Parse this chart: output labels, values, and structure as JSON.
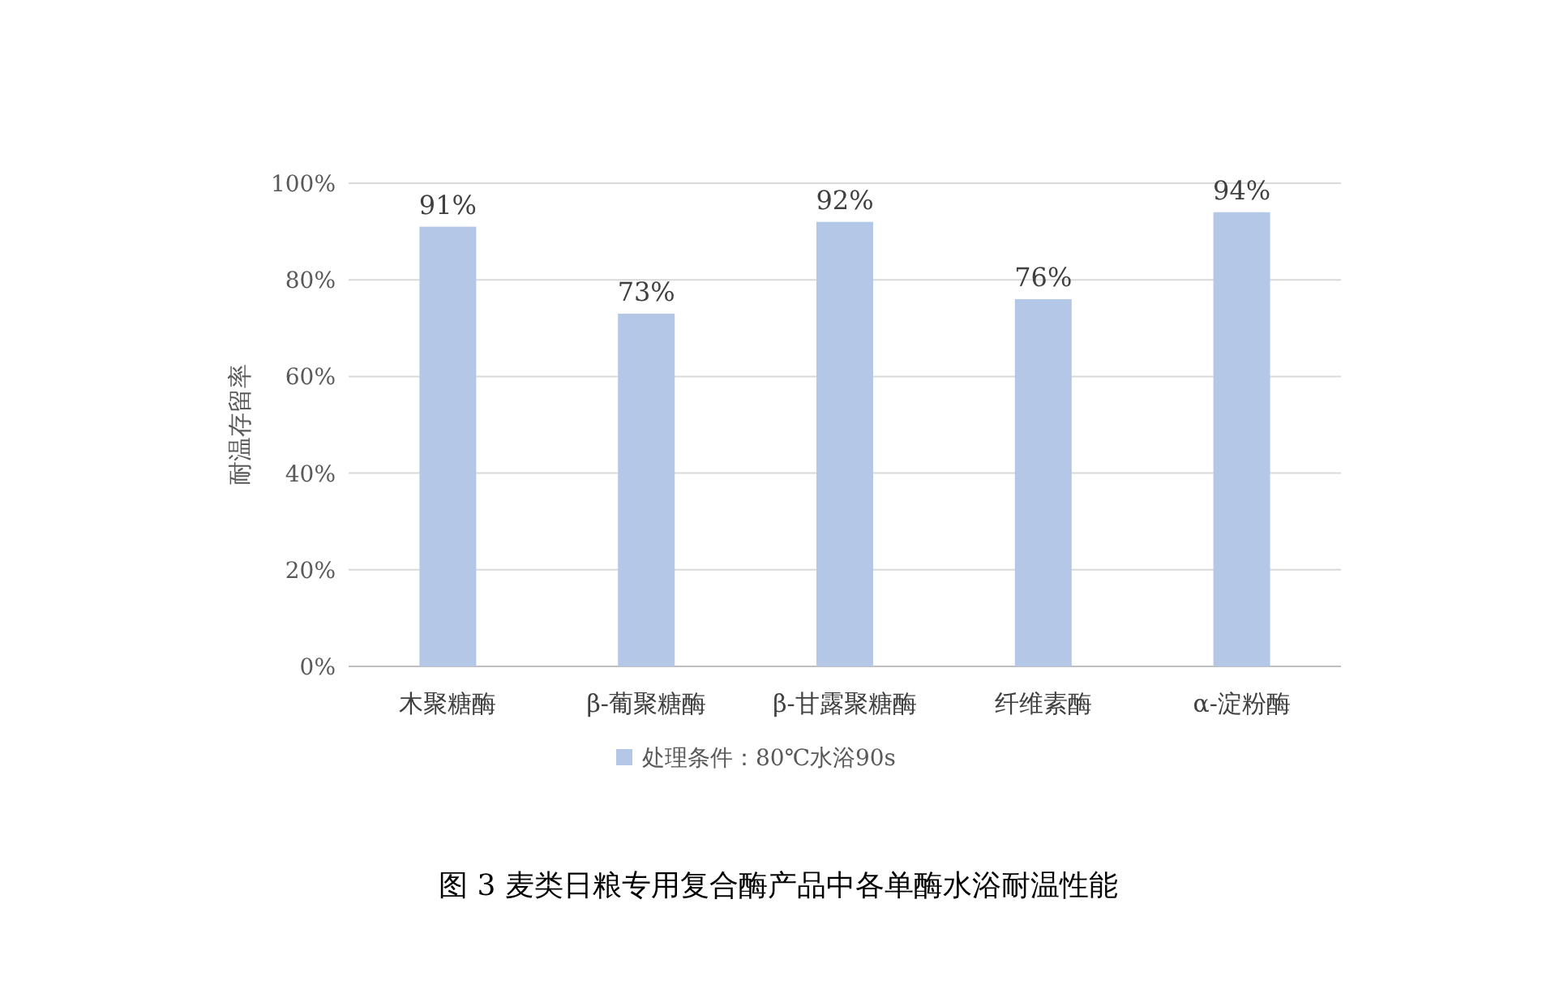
{
  "chart_data": {
    "type": "bar",
    "title": "图 3  麦类日粮专用复合酶产品中各单酶水浴耐温性能",
    "ylabel": "耐温存留率",
    "categories": [
      "木聚糖酶",
      "β-葡聚糖酶",
      "β-甘露聚糖酶",
      "纤维素酶",
      "α-淀粉酶"
    ],
    "series": [
      {
        "name": "处理条件：80℃水浴90s",
        "color": "#b4c7e7",
        "values": [
          91,
          73,
          92,
          76,
          94
        ],
        "value_labels": [
          "91%",
          "73%",
          "92%",
          "76%",
          "94%"
        ]
      }
    ],
    "ylim": [
      0,
      100
    ],
    "yticks": [
      {
        "value": 0,
        "label": "0%"
      },
      {
        "value": 20,
        "label": "20%"
      },
      {
        "value": 40,
        "label": "40%"
      },
      {
        "value": 60,
        "label": "60%"
      },
      {
        "value": 80,
        "label": "80%"
      },
      {
        "value": 100,
        "label": "100%"
      }
    ],
    "grid": "y",
    "legend": "bottom"
  }
}
